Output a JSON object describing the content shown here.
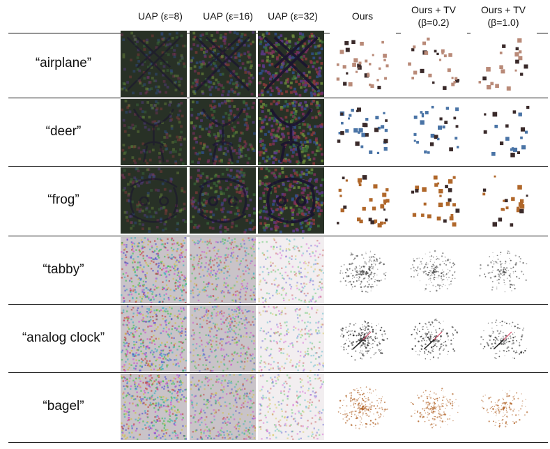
{
  "columns": [
    {
      "line1": "UAP (ε=8)",
      "line2": "",
      "style": "uap",
      "strength": 0.35
    },
    {
      "line1": "UAP (ε=16)",
      "line2": "",
      "style": "uap",
      "strength": 0.65
    },
    {
      "line1": "UAP (ε=32)",
      "line2": "",
      "style": "uap",
      "strength": 1.0
    },
    {
      "line1": "Ours",
      "line2": "",
      "style": "ours",
      "density": 1.0
    },
    {
      "line1": "Ours + TV",
      "line2": "(β=0.2)",
      "style": "ours",
      "density": 0.8
    },
    {
      "line1": "Ours + TV",
      "line2": "(β=1.0)",
      "style": "ours",
      "density": 0.6
    }
  ],
  "rows": [
    {
      "label": "“airplane”",
      "dark": true,
      "color": "#b98a78",
      "icon": "airplane-icon"
    },
    {
      "label": "“deer”",
      "dark": true,
      "color": "#4a74a6",
      "icon": "deer-icon"
    },
    {
      "label": "“frog”",
      "dark": true,
      "color": "#b0672a",
      "icon": "frog-icon"
    },
    {
      "label": "“tabby”",
      "dark": false,
      "color": "#555555",
      "icon": "cat-icon"
    },
    {
      "label": "“analog clock”",
      "dark": false,
      "color": "#333333",
      "icon": "clock-icon"
    },
    {
      "label": "“bagel”",
      "dark": false,
      "color": "#b3652a",
      "icon": "bagel-icon"
    }
  ]
}
